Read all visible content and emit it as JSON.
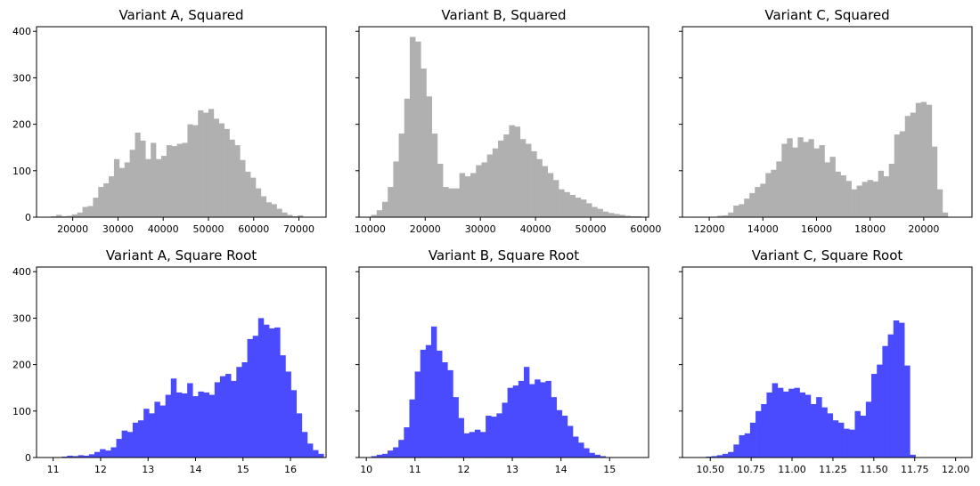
{
  "chart_data": [
    {
      "type": "bar",
      "title": "Variant A, Squared",
      "color": "#b0b0b0",
      "xlim": [
        12000,
        76000
      ],
      "ylim": [
        0,
        410
      ],
      "xticks": [
        20000,
        30000,
        40000,
        50000,
        60000,
        70000
      ],
      "xtick_labels": [
        "20000",
        "30000",
        "40000",
        "50000",
        "60000",
        "70000"
      ],
      "yticks": [
        0,
        100,
        200,
        300,
        400
      ],
      "ytick_labels": [
        "0",
        "100",
        "200",
        "300",
        "400"
      ],
      "show_ytick_labels": true,
      "bin_start": 15200,
      "bin_width": 1160,
      "values": [
        2,
        5,
        2,
        3,
        6,
        10,
        22,
        24,
        42,
        65,
        73,
        88,
        125,
        106,
        118,
        145,
        182,
        165,
        125,
        160,
        125,
        132,
        155,
        153,
        158,
        160,
        200,
        198,
        230,
        225,
        233,
        212,
        202,
        190,
        167,
        155,
        123,
        98,
        85,
        62,
        45,
        32,
        28,
        18,
        10,
        5,
        2,
        4
      ]
    },
    {
      "type": "bar",
      "title": "Variant B, Squared",
      "color": "#b0b0b0",
      "xlim": [
        8000,
        60500
      ],
      "ylim": [
        0,
        410
      ],
      "xticks": [
        10000,
        20000,
        30000,
        40000,
        50000,
        60000
      ],
      "xtick_labels": [
        "10000",
        "20000",
        "30000",
        "40000",
        "50000",
        "60000"
      ],
      "yticks": [
        0,
        100,
        200,
        300,
        400
      ],
      "ytick_labels": [
        "0",
        "100",
        "200",
        "300",
        "400"
      ],
      "show_ytick_labels": false,
      "bin_start": 10200,
      "bin_width": 1000,
      "values": [
        5,
        15,
        33,
        65,
        120,
        180,
        255,
        388,
        378,
        320,
        260,
        180,
        115,
        65,
        62,
        62,
        95,
        88,
        95,
        112,
        118,
        135,
        148,
        165,
        178,
        198,
        195,
        168,
        158,
        142,
        125,
        110,
        95,
        80,
        60,
        54,
        48,
        42,
        38,
        30,
        22,
        18,
        12,
        9,
        7,
        5,
        3,
        2,
        2,
        1
      ]
    },
    {
      "type": "bar",
      "title": "Variant C, Squared",
      "color": "#b0b0b0",
      "xlim": [
        11000,
        21800
      ],
      "ylim": [
        0,
        410
      ],
      "xticks": [
        12000,
        14000,
        16000,
        18000,
        20000
      ],
      "xtick_labels": [
        "12000",
        "14000",
        "16000",
        "18000",
        "20000"
      ],
      "yticks": [
        0,
        100,
        200,
        300,
        400
      ],
      "ytick_labels": [
        "0",
        "100",
        "200",
        "300",
        "400"
      ],
      "show_ytick_labels": false,
      "bin_start": 11300,
      "bin_width": 200,
      "values": [
        1,
        1,
        1,
        1,
        1,
        3,
        4,
        10,
        25,
        28,
        40,
        52,
        65,
        72,
        95,
        102,
        120,
        158,
        170,
        150,
        172,
        162,
        168,
        148,
        155,
        118,
        130,
        98,
        90,
        78,
        60,
        68,
        76,
        80,
        77,
        100,
        88,
        115,
        178,
        185,
        218,
        225,
        246,
        248,
        242,
        152,
        60,
        10
      ]
    },
    {
      "type": "bar",
      "title": "Variant A, Square Root",
      "color": "#4a4aff",
      "xlim": [
        10.65,
        16.75
      ],
      "ylim": [
        0,
        410
      ],
      "xticks": [
        11,
        12,
        13,
        14,
        15,
        16
      ],
      "xtick_labels": [
        "11",
        "12",
        "13",
        "14",
        "15",
        "16"
      ],
      "yticks": [
        0,
        100,
        200,
        300,
        400
      ],
      "ytick_labels": [
        "0",
        "100",
        "200",
        "300",
        "400"
      ],
      "show_ytick_labels": true,
      "bin_start": 10.95,
      "bin_width": 0.115,
      "values": [
        1,
        1,
        2,
        4,
        3,
        5,
        4,
        7,
        12,
        18,
        15,
        22,
        40,
        58,
        55,
        75,
        80,
        105,
        95,
        120,
        112,
        135,
        170,
        140,
        138,
        160,
        132,
        142,
        140,
        135,
        162,
        175,
        180,
        165,
        195,
        205,
        255,
        262,
        300,
        286,
        278,
        280,
        220,
        185,
        145,
        95,
        55,
        30,
        16,
        8
      ]
    },
    {
      "type": "bar",
      "title": "Variant B, Square Root",
      "color": "#4a4aff",
      "xlim": [
        9.85,
        15.8
      ],
      "ylim": [
        0,
        410
      ],
      "xticks": [
        10,
        11,
        12,
        13,
        14,
        15
      ],
      "xtick_labels": [
        "10",
        "11",
        "12",
        "13",
        "14",
        "15"
      ],
      "yticks": [
        0,
        100,
        200,
        300,
        400
      ],
      "ytick_labels": [
        "0",
        "100",
        "200",
        "300",
        "400"
      ],
      "show_ytick_labels": false,
      "bin_start": 10.1,
      "bin_width": 0.112,
      "values": [
        3,
        6,
        8,
        15,
        22,
        38,
        65,
        125,
        185,
        232,
        242,
        282,
        230,
        205,
        188,
        130,
        85,
        52,
        55,
        60,
        55,
        90,
        88,
        95,
        118,
        150,
        155,
        165,
        195,
        158,
        168,
        162,
        165,
        130,
        102,
        90,
        68,
        45,
        32,
        20,
        10,
        6,
        3,
        1,
        1
      ]
    },
    {
      "type": "bar",
      "title": "Variant C, Square Root",
      "color": "#4a4aff",
      "xlim": [
        10.33,
        12.1
      ],
      "ylim": [
        0,
        410
      ],
      "xticks": [
        10.5,
        10.75,
        11.0,
        11.25,
        11.5,
        11.75,
        12.0
      ],
      "xtick_labels": [
        "10.50",
        "10.75",
        "11.00",
        "11.25",
        "11.50",
        "11.75",
        "12.00"
      ],
      "yticks": [
        0,
        100,
        200,
        300,
        400
      ],
      "ytick_labels": [
        "0",
        "100",
        "200",
        "300",
        "400"
      ],
      "show_ytick_labels": false,
      "bin_start": 10.44,
      "bin_width": 0.0337,
      "values": [
        1,
        2,
        3,
        5,
        8,
        12,
        28,
        48,
        52,
        75,
        100,
        115,
        140,
        160,
        150,
        142,
        148,
        150,
        140,
        135,
        115,
        130,
        108,
        95,
        80,
        75,
        62,
        60,
        100,
        90,
        120,
        180,
        200,
        240,
        265,
        295,
        290,
        198,
        6
      ]
    }
  ]
}
